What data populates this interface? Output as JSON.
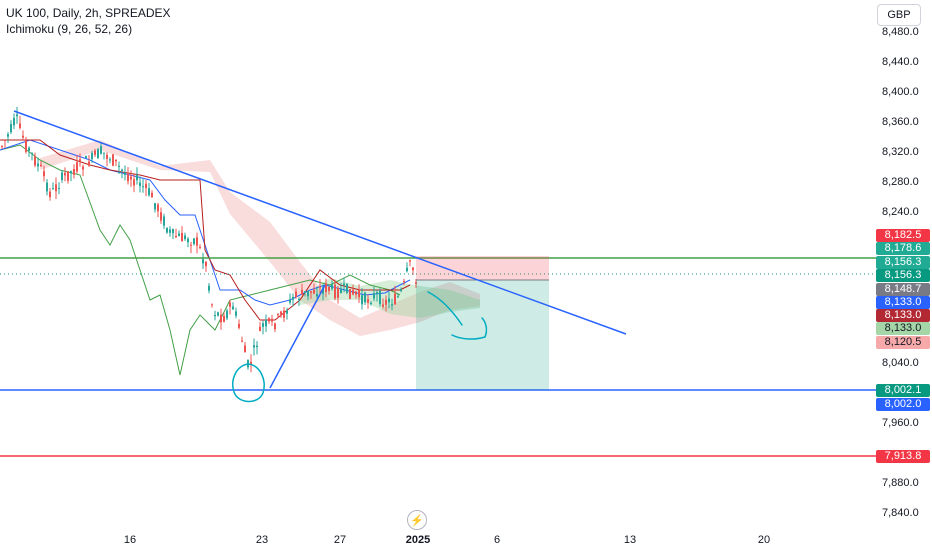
{
  "header": {
    "title": "UK 100, Daily, 2h, SPREADEX",
    "indicator": "Ichimoku (9, 26, 52, 26)"
  },
  "currency": "GBP",
  "y_axis_ticks": [
    "8,480.0",
    "8,440.0",
    "8,400.0",
    "8,360.0",
    "8,320.0",
    "8,280.0",
    "8,240.0",
    "8,040.0",
    "7,960.0",
    "7,880.0",
    "7,840.0"
  ],
  "x_axis_ticks": [
    {
      "label": "16",
      "bold": false
    },
    {
      "label": "23",
      "bold": false
    },
    {
      "label": "27",
      "bold": false
    },
    {
      "label": "2025",
      "bold": true
    },
    {
      "label": "6",
      "bold": false
    },
    {
      "label": "13",
      "bold": false
    },
    {
      "label": "20",
      "bold": false
    }
  ],
  "price_labels": [
    {
      "value": "8,182.5",
      "color": "#f23645"
    },
    {
      "value": "8,178.6",
      "color": "#22ab94"
    },
    {
      "value": "8,156.3",
      "color": "#22ab94"
    },
    {
      "value": "8,156.3",
      "color": "#089981"
    },
    {
      "value": "8,148.7",
      "color": "#787b86"
    },
    {
      "value": "8,133.0",
      "color": "#2962ff"
    },
    {
      "value": "8,133.0",
      "color": "#b22833"
    },
    {
      "value": "8,133.0",
      "color": "#a5d6a7"
    },
    {
      "value": "8,120.5",
      "color": "#f7a9a9"
    },
    {
      "value": "8,002.1",
      "color": "#089981"
    },
    {
      "value": "8,002.0",
      "color": "#2962ff"
    },
    {
      "value": "7,913.8",
      "color": "#f23645"
    }
  ],
  "colors": {
    "up": "#26a69a",
    "down": "#ef5350",
    "tenkan": "#2962ff",
    "kijun": "#b71c1c",
    "chikou": "#43a047",
    "cloud_up": "#a5d6a7",
    "cloud_down": "#ef9a9a",
    "trendline": "#2962ff",
    "drawing": "#00acc1"
  },
  "footer_icon": "lightning-bolt-icon"
}
